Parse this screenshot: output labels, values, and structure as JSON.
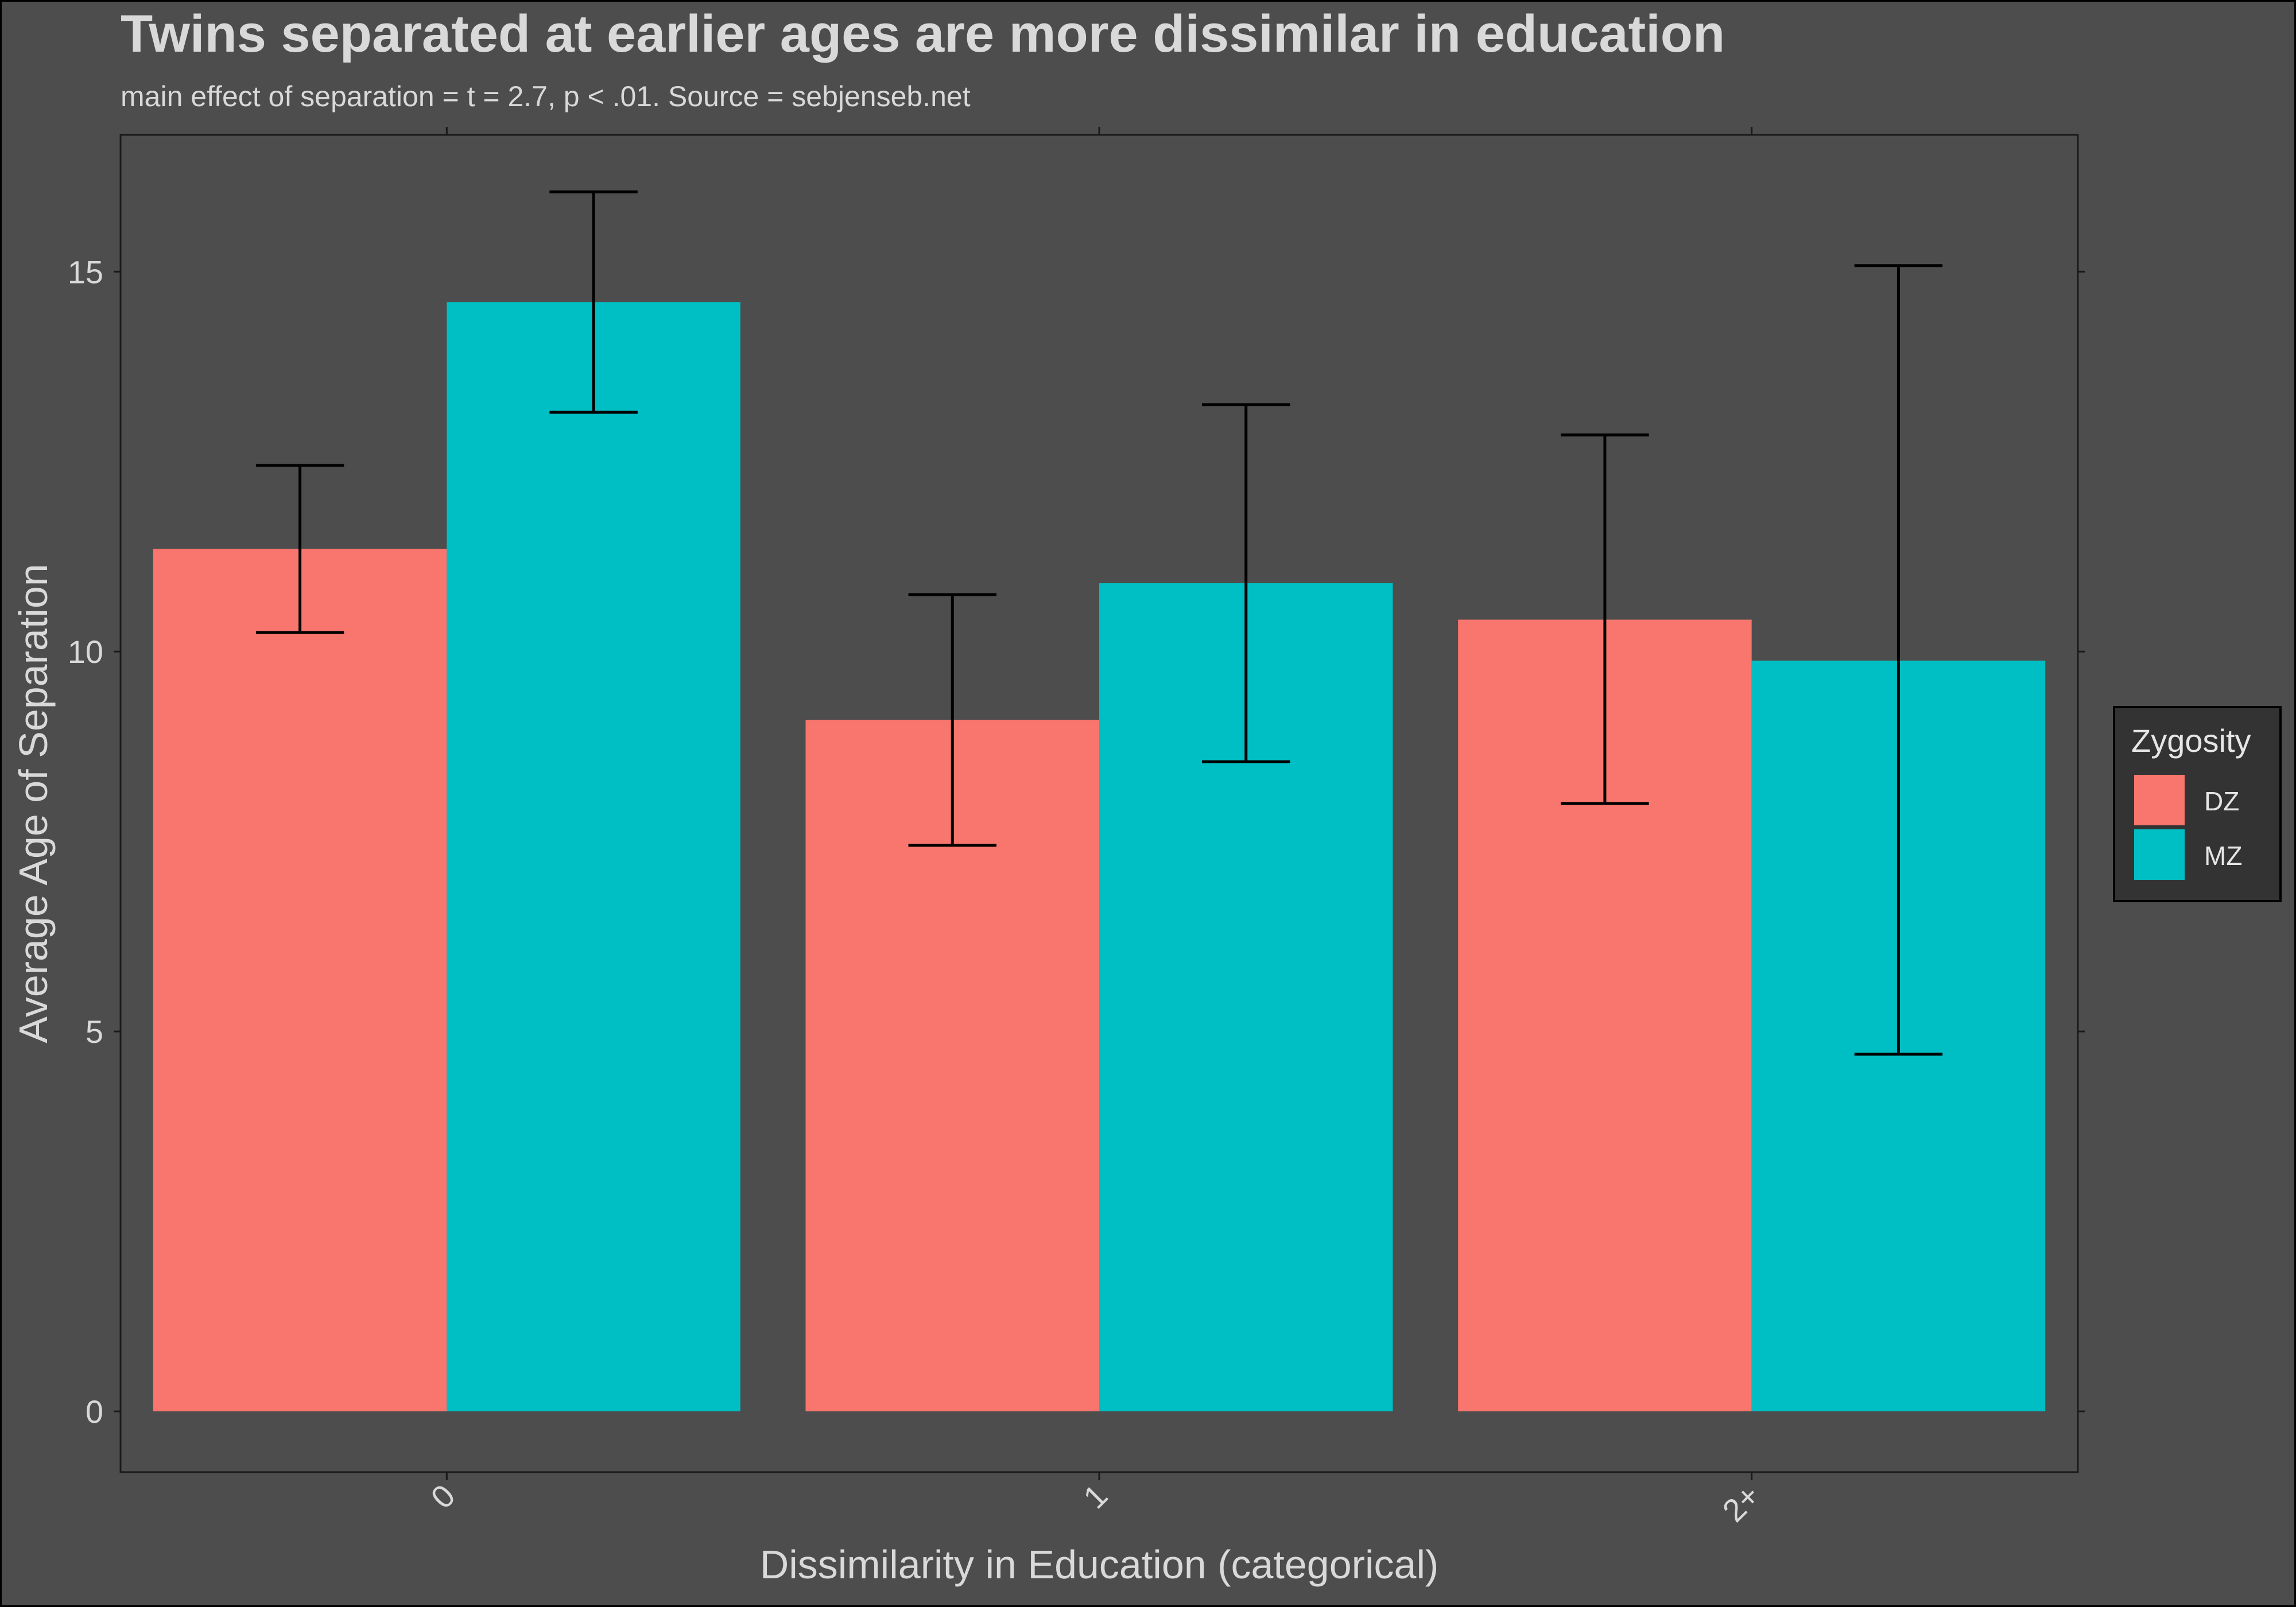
{
  "chart_data": {
    "type": "bar",
    "title": "Twins separated at earlier ages are more dissimilar in education",
    "subtitle": "main effect of separation = t = 2.7, p < .01. Source = sebjenseb.net",
    "xlabel": "Dissimilarity in Education (categorical)",
    "ylabel": "Average Age of Separation",
    "categories": [
      "0",
      "1",
      "2+"
    ],
    "ylim": [
      -0.8,
      16.8
    ],
    "yticks": [
      0,
      5,
      10,
      15
    ],
    "legend": {
      "title": "Zygosity",
      "position": "right"
    },
    "series": [
      {
        "name": "DZ",
        "color": "#f8766d",
        "values": [
          11.35,
          9.1,
          10.42
        ],
        "error_low": [
          10.25,
          7.45,
          8.0
        ],
        "error_high": [
          12.45,
          10.75,
          12.85
        ]
      },
      {
        "name": "MZ",
        "color": "#00bfc4",
        "values": [
          14.6,
          10.9,
          9.88
        ],
        "error_low": [
          13.15,
          8.55,
          4.7
        ],
        "error_high": [
          16.05,
          13.25,
          15.08
        ]
      }
    ],
    "grid": false
  }
}
